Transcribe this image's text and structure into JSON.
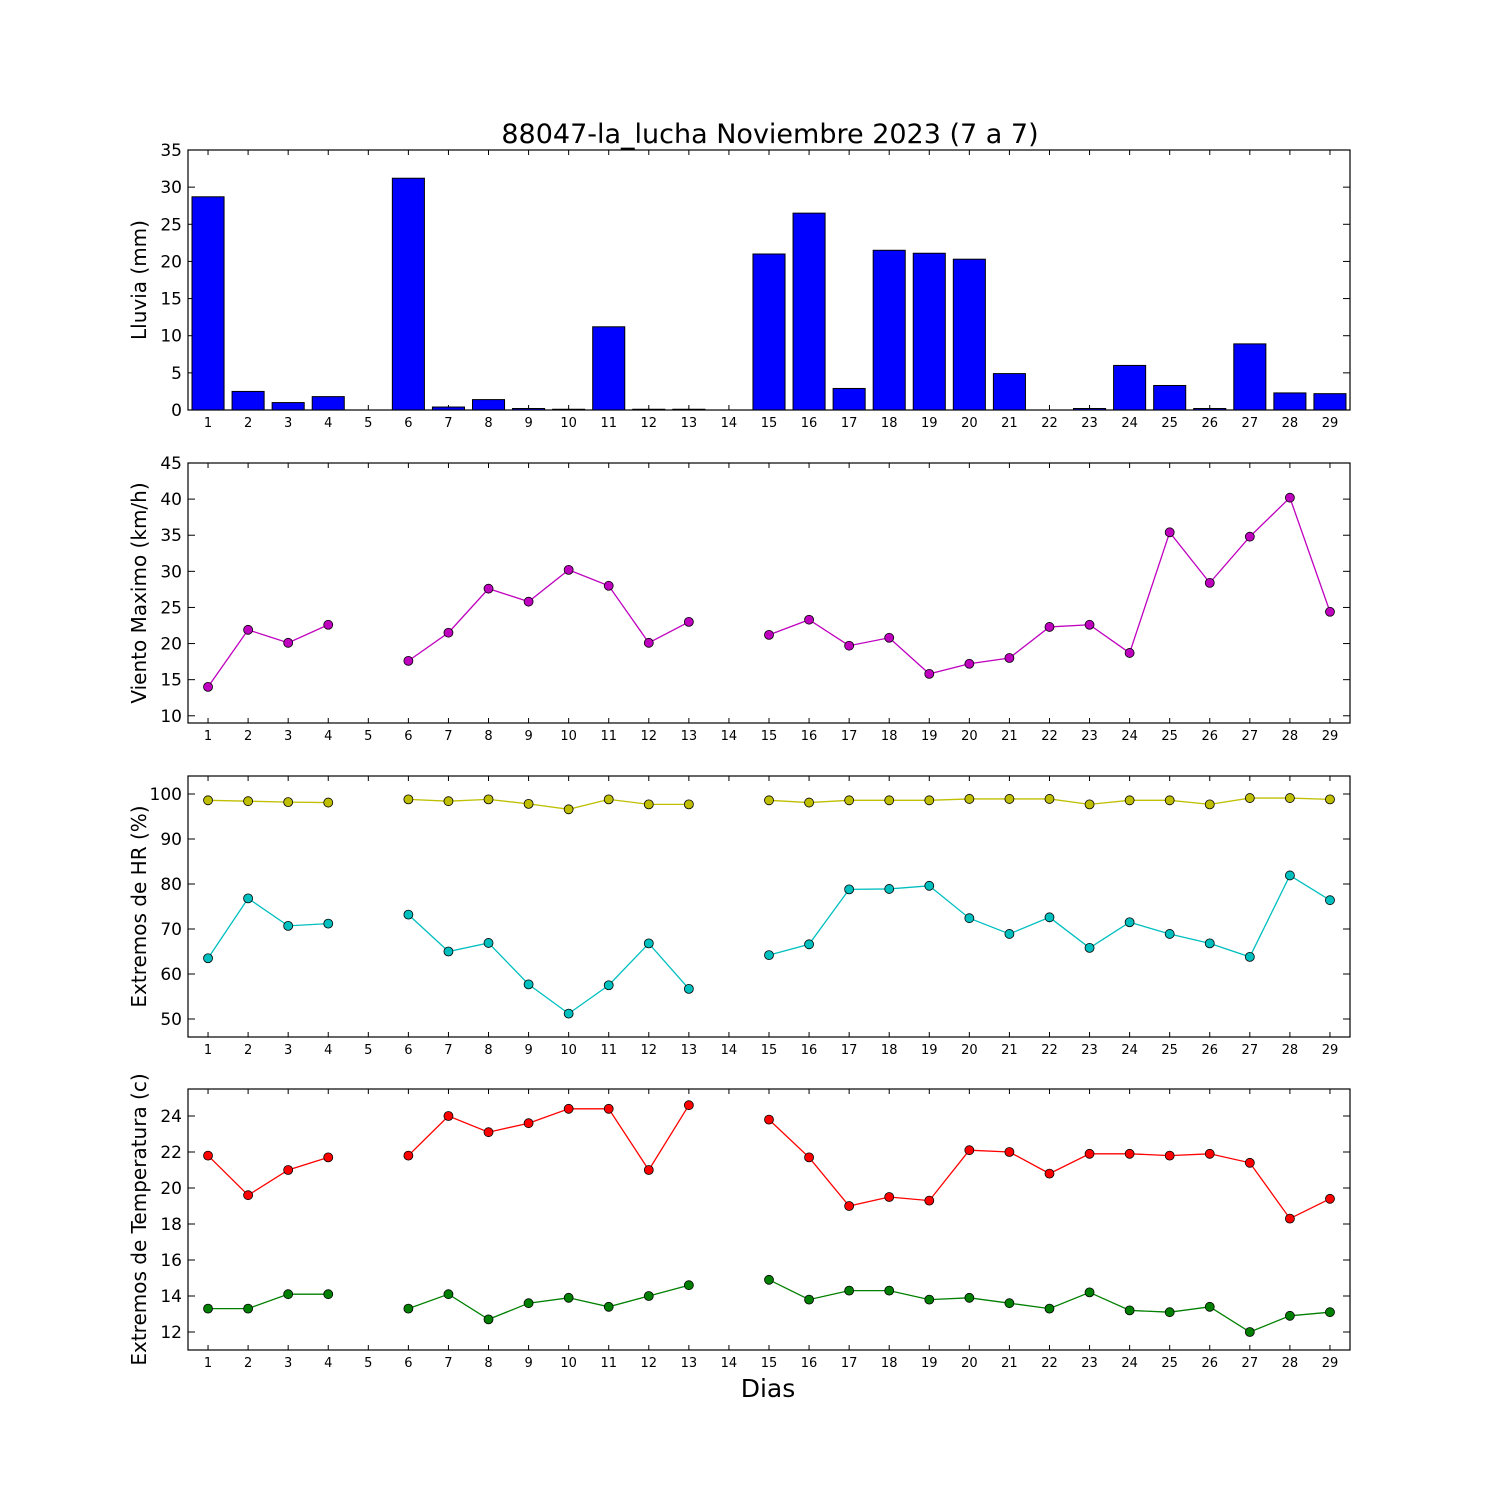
{
  "chart_data": {
    "title": "88047-la_lucha Noviembre 2023  (7 a 7)",
    "xlabel": "Dias",
    "days": [
      1,
      2,
      3,
      4,
      5,
      6,
      7,
      8,
      9,
      10,
      11,
      12,
      13,
      14,
      15,
      16,
      17,
      18,
      19,
      20,
      21,
      22,
      23,
      24,
      25,
      26,
      27,
      28,
      29
    ],
    "panels": [
      {
        "type": "bar",
        "ylabel": "Lluvia (mm)",
        "ylim": [
          0,
          35
        ],
        "yticks": [
          0,
          5,
          10,
          15,
          20,
          25,
          30,
          35
        ],
        "series": [
          {
            "color": "#0000ff",
            "values": [
              28.7,
              2.5,
              1.0,
              1.8,
              0,
              31.2,
              0.4,
              1.4,
              0.2,
              0.1,
              11.2,
              0.1,
              0.1,
              0,
              21.0,
              26.5,
              2.9,
              21.5,
              21.1,
              20.3,
              4.9,
              0,
              0.2,
              6.0,
              3.3,
              0.2,
              8.9,
              2.3,
              2.2
            ]
          }
        ]
      },
      {
        "type": "line",
        "ylabel": "Viento Maximo (km/h)",
        "ylim": [
          9,
          45
        ],
        "yticks": [
          10,
          15,
          20,
          25,
          30,
          35,
          40,
          45
        ],
        "series": [
          {
            "color": "#bf00bf",
            "values": [
              14.0,
              21.9,
              20.1,
              22.6,
              null,
              17.6,
              21.5,
              27.6,
              25.8,
              30.2,
              28.0,
              20.1,
              23.0,
              null,
              21.2,
              23.3,
              19.7,
              20.8,
              15.8,
              17.2,
              18.0,
              22.3,
              22.6,
              18.7,
              35.4,
              28.4,
              34.8,
              40.2,
              24.4
            ]
          }
        ]
      },
      {
        "type": "line",
        "ylabel": "Extremos de HR (%)",
        "ylim": [
          46,
          104
        ],
        "yticks": [
          50,
          60,
          70,
          80,
          90,
          100
        ],
        "series": [
          {
            "color": "#bfbf00",
            "values": [
              98.6,
              98.4,
              98.2,
              98.1,
              null,
              98.8,
              98.4,
              98.8,
              97.8,
              96.6,
              98.8,
              97.7,
              97.7,
              null,
              98.6,
              98.1,
              98.6,
              98.6,
              98.6,
              98.9,
              98.9,
              98.9,
              97.7,
              98.6,
              98.6,
              97.7,
              99.1,
              99.1,
              98.8
            ]
          },
          {
            "color": "#00bfbf",
            "values": [
              63.5,
              76.8,
              70.7,
              71.2,
              null,
              73.2,
              65.0,
              66.9,
              57.7,
              51.2,
              57.5,
              66.8,
              56.7,
              null,
              64.2,
              66.6,
              78.8,
              78.9,
              79.6,
              72.4,
              68.9,
              72.6,
              65.8,
              71.5,
              68.9,
              66.8,
              63.8,
              81.9,
              76.4
            ]
          }
        ]
      },
      {
        "type": "line",
        "ylabel": "Extremos de Temperatura (c)",
        "ylim": [
          11,
          25.5
        ],
        "yticks": [
          12,
          14,
          16,
          18,
          20,
          22,
          24
        ],
        "series": [
          {
            "color": "#ff0000",
            "values": [
              21.8,
              19.6,
              21.0,
              21.7,
              null,
              21.8,
              24.0,
              23.1,
              23.6,
              24.4,
              24.4,
              21.0,
              24.6,
              null,
              23.8,
              21.7,
              19.0,
              19.5,
              19.3,
              22.1,
              22.0,
              20.8,
              21.9,
              21.9,
              21.8,
              21.9,
              21.4,
              18.3,
              19.4
            ]
          },
          {
            "color": "#008000",
            "values": [
              13.3,
              13.3,
              14.1,
              14.1,
              null,
              13.3,
              14.1,
              12.7,
              13.6,
              13.9,
              13.4,
              14.0,
              14.6,
              null,
              14.9,
              13.8,
              14.3,
              14.3,
              13.8,
              13.9,
              13.6,
              13.3,
              14.2,
              13.2,
              13.1,
              13.4,
              12.0,
              12.9,
              13.1
            ]
          }
        ]
      }
    ]
  }
}
